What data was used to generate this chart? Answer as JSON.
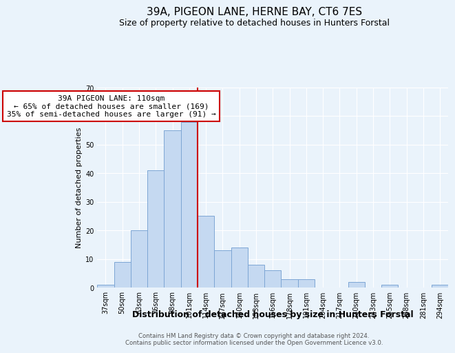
{
  "title": "39A, PIGEON LANE, HERNE BAY, CT6 7ES",
  "subtitle": "Size of property relative to detached houses in Hunters Forstal",
  "xlabel": "Distribution of detached houses by size in Hunters Forstal",
  "ylabel": "Number of detached properties",
  "footer_line1": "Contains HM Land Registry data © Crown copyright and database right 2024.",
  "footer_line2": "Contains public sector information licensed under the Open Government Licence v3.0.",
  "bar_labels": [
    "37sqm",
    "50sqm",
    "63sqm",
    "76sqm",
    "88sqm",
    "101sqm",
    "114sqm",
    "127sqm",
    "140sqm",
    "153sqm",
    "166sqm",
    "178sqm",
    "191sqm",
    "204sqm",
    "217sqm",
    "230sqm",
    "243sqm",
    "255sqm",
    "268sqm",
    "281sqm",
    "294sqm"
  ],
  "bar_heights": [
    1,
    9,
    20,
    41,
    55,
    58,
    25,
    13,
    14,
    8,
    6,
    3,
    3,
    0,
    0,
    2,
    0,
    1,
    0,
    0,
    1
  ],
  "bar_color": "#c5d9f1",
  "bar_edge_color": "#7da6d4",
  "vline_x_index": 5.5,
  "vline_color": "#cc0000",
  "annotation_line1": "39A PIGEON LANE: 110sqm",
  "annotation_line2": "← 65% of detached houses are smaller (169)",
  "annotation_line3": "35% of semi-detached houses are larger (91) →",
  "annotation_box_edge": "#cc0000",
  "ylim": [
    0,
    70
  ],
  "yticks": [
    0,
    10,
    20,
    30,
    40,
    50,
    60,
    70
  ],
  "background_color": "#eaf3fb",
  "plot_bg_color": "#eaf3fb",
  "grid_color": "#ffffff",
  "title_fontsize": 11,
  "subtitle_fontsize": 9,
  "xlabel_fontsize": 9,
  "ylabel_fontsize": 8,
  "tick_fontsize": 7,
  "annotation_fontsize": 8
}
